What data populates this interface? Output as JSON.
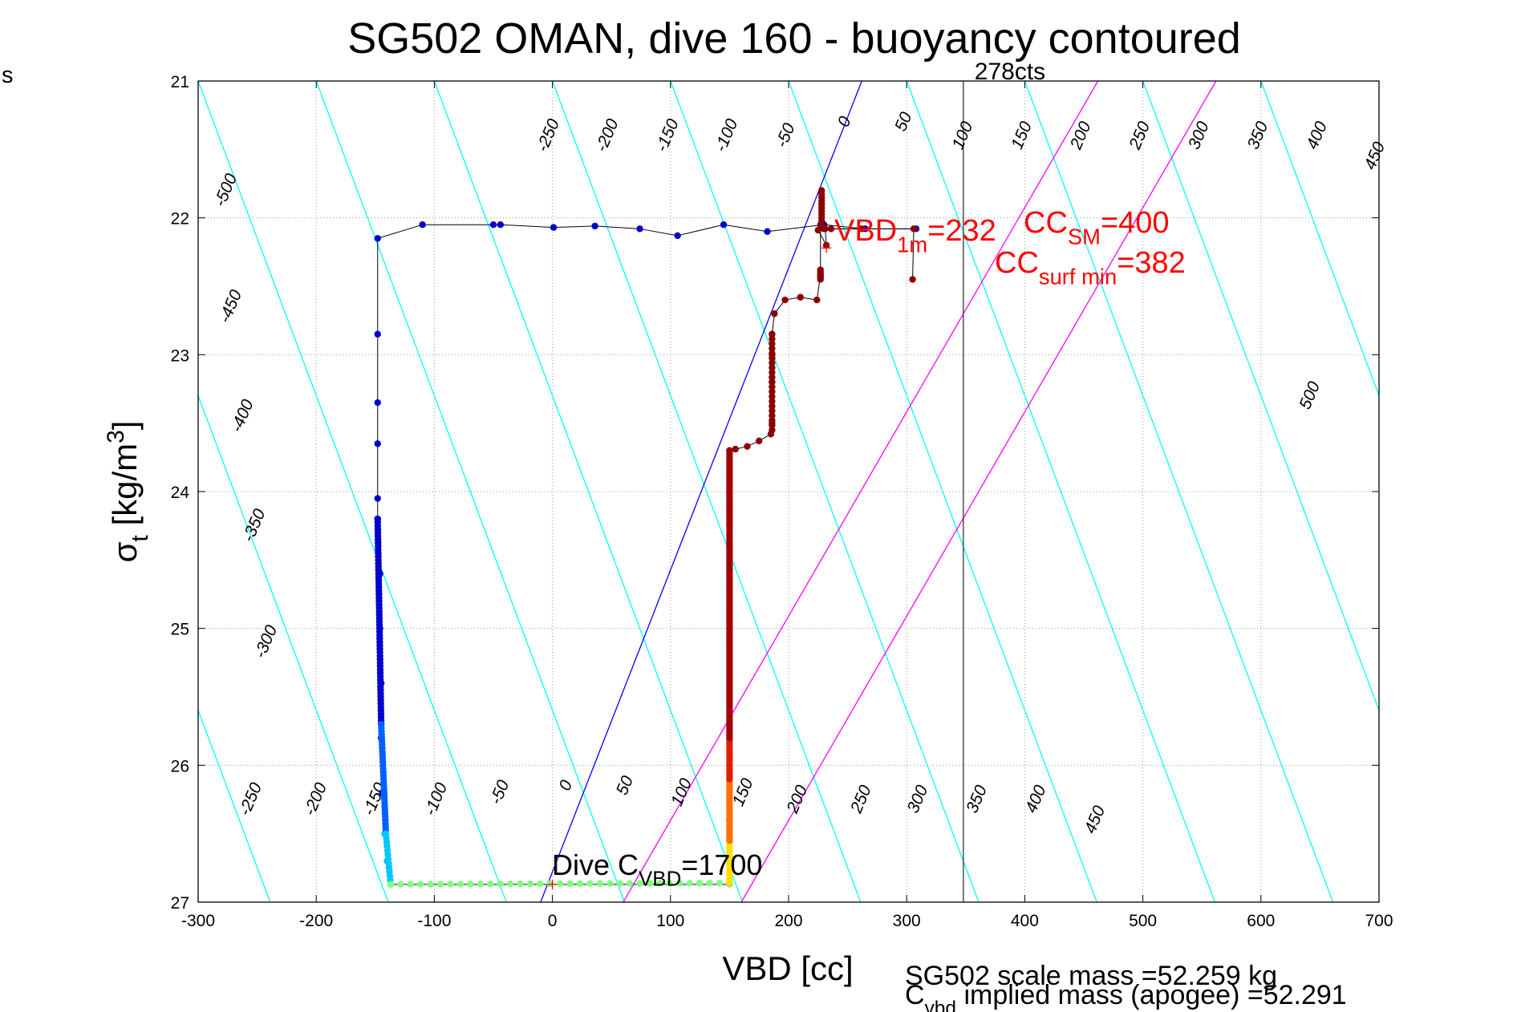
{
  "corner_text": "s",
  "chart_data": {
    "type": "scatter",
    "title": "SG502 OMAN, dive 160 - buoyancy contoured",
    "xlabel": "VBD [cc]",
    "ylabel": {
      "main": "σ",
      "sub": "t",
      "units": " [kg/m",
      "sup": "3",
      "close": "]"
    },
    "xlim": [
      -300,
      700
    ],
    "ylim": [
      21,
      27
    ],
    "y_reversed": true,
    "grid": true,
    "xticks": [
      -300,
      -200,
      -100,
      0,
      100,
      200,
      300,
      400,
      500,
      600,
      700
    ],
    "yticks": [
      21,
      22,
      23,
      24,
      25,
      26,
      27
    ],
    "xtick_labels": [
      "-300",
      "-200",
      "-100",
      "0",
      "100",
      "200",
      "300",
      "400",
      "500",
      "600",
      "700"
    ],
    "ytick_labels": [
      "21",
      "22",
      "23",
      "24",
      "25",
      "26",
      "27"
    ],
    "contour_slope_cc_per_sigma": 43.5,
    "contour_line_color": "#00ffff",
    "contour_intercepts": [
      -900,
      -800,
      -700,
      -600,
      -500,
      -400,
      -300,
      -200,
      -100,
      0,
      100,
      200,
      300,
      400,
      500,
      600,
      700,
      800,
      900
    ],
    "contour_labels_top": [
      {
        "text": "-500",
        "x": -276,
        "y": 21.8
      },
      {
        "text": "-250",
        "x": -3,
        "y": 21.4
      },
      {
        "text": "-200",
        "x": 47,
        "y": 21.4
      },
      {
        "text": "-150",
        "x": 98,
        "y": 21.4
      },
      {
        "text": "-100",
        "x": 148,
        "y": 21.4
      },
      {
        "text": "-50",
        "x": 198,
        "y": 21.4
      },
      {
        "text": "0",
        "x": 248,
        "y": 21.3
      },
      {
        "text": "50",
        "x": 298,
        "y": 21.3
      },
      {
        "text": "100",
        "x": 348,
        "y": 21.4
      },
      {
        "text": "150",
        "x": 398,
        "y": 21.4
      },
      {
        "text": "200",
        "x": 448,
        "y": 21.4
      },
      {
        "text": "250",
        "x": 498,
        "y": 21.4
      },
      {
        "text": "300",
        "x": 548,
        "y": 21.4
      },
      {
        "text": "350",
        "x": 598,
        "y": 21.4
      },
      {
        "text": "400",
        "x": 648,
        "y": 21.4
      },
      {
        "text": "450",
        "x": 697,
        "y": 21.55
      }
    ],
    "contour_labels_left": [
      {
        "text": "-450",
        "x": -272,
        "y": 22.65
      },
      {
        "text": "-400",
        "x": -262,
        "y": 23.45
      },
      {
        "text": "-350",
        "x": -252,
        "y": 24.25
      },
      {
        "text": "-300",
        "x": -242,
        "y": 25.1
      },
      {
        "text": "500",
        "x": 642,
        "y": 23.3
      }
    ],
    "contour_labels_bottom": [
      {
        "text": "-250",
        "x": -255,
        "y": 26.25
      },
      {
        "text": "-200",
        "x": -200,
        "y": 26.25
      },
      {
        "text": "-150",
        "x": -150,
        "y": 26.25
      },
      {
        "text": "-100",
        "x": -98,
        "y": 26.25
      },
      {
        "text": "-50",
        "x": -44,
        "y": 26.2
      },
      {
        "text": "0",
        "x": 12,
        "y": 26.15
      },
      {
        "text": "50",
        "x": 62,
        "y": 26.15
      },
      {
        "text": "100",
        "x": 110,
        "y": 26.2
      },
      {
        "text": "150",
        "x": 162,
        "y": 26.2
      },
      {
        "text": "200",
        "x": 208,
        "y": 26.25
      },
      {
        "text": "250",
        "x": 262,
        "y": 26.25
      },
      {
        "text": "300",
        "x": 310,
        "y": 26.25
      },
      {
        "text": "350",
        "x": 360,
        "y": 26.25
      },
      {
        "text": "400",
        "x": 410,
        "y": 26.25
      },
      {
        "text": "450",
        "x": 460,
        "y": 26.4
      }
    ],
    "reference_lines": [
      {
        "name": "zero buoyancy",
        "color": "#0000ff",
        "points": [
          [
            -10,
            27
          ],
          [
            262,
            21
          ]
        ]
      },
      {
        "name": "CC SM",
        "color": "#ff00ff",
        "points": [
          [
            60,
            27
          ],
          [
            462,
            21
          ]
        ]
      },
      {
        "name": "CC surf min",
        "color": "#ff00ff",
        "points": [
          [
            160,
            27
          ],
          [
            562,
            21
          ]
        ]
      },
      {
        "name": "pump counts",
        "color": "#333333",
        "points": [
          [
            348,
            21
          ],
          [
            348,
            27
          ]
        ]
      }
    ],
    "pump_label": "278cts",
    "annotations": {
      "vbd1m": {
        "base": "VBD",
        "sub": "1m",
        "rest": "=232"
      },
      "cc_sm": {
        "base": "CC",
        "sub": "SM",
        "rest": "=400"
      },
      "cc_surf_min": {
        "base": "CC",
        "sub": "surf min",
        "rest": "=382"
      },
      "dive_cvbd": {
        "base": "Dive C",
        "sub": "VBD",
        "rest": "=1700"
      },
      "scale_mass": "SG502 scale mass =52.259 kg",
      "implied_mass": {
        "base": "C",
        "sub": "vbd",
        "rest": " implied mass (apogee) =52.291"
      }
    },
    "marker_colors": {
      "dive_top": "#0000c8",
      "dive_mid": "#0050ff",
      "dive_lower": "#00b4ff",
      "bottom": "#7fff7f",
      "climb_low": "#ffff00",
      "climb_mid": "#ff8000",
      "climb": "#8b0000"
    },
    "series": [
      {
        "points": [
          [
            230,
            22.08
          ],
          [
            308,
            22.08
          ],
          [
            265,
            22.08
          ],
          [
            230,
            22.05
          ],
          [
            182,
            22.1
          ],
          [
            145,
            22.05
          ],
          [
            106,
            22.13
          ],
          [
            74,
            22.08
          ],
          [
            36,
            22.06
          ],
          [
            1,
            22.07
          ],
          [
            -44,
            22.05
          ],
          [
            -50,
            22.05
          ],
          [
            -110,
            22.05
          ],
          [
            -148,
            22.15
          ],
          [
            -148,
            22.85
          ],
          [
            -148,
            23.35
          ],
          [
            -148,
            23.65
          ],
          [
            -148,
            24.05
          ],
          [
            -148,
            24.2
          ],
          [
            -146,
            24.6
          ],
          [
            -146,
            25.0
          ],
          [
            -145,
            25.4
          ],
          [
            -145,
            25.8
          ],
          [
            -144,
            26.2
          ],
          [
            -142,
            26.5
          ],
          [
            -140,
            26.7
          ],
          [
            -137,
            26.87
          ]
        ],
        "dense_segments": [
          {
            "from": [
              -148,
              24.2
            ],
            "to": [
              -145,
              25.7
            ],
            "step": 0.025,
            "color": "#0000cd"
          },
          {
            "from": [
              -145,
              25.7
            ],
            "to": [
              -141,
              26.5
            ],
            "step": 0.025,
            "color": "#0060ff"
          },
          {
            "from": [
              -141,
              26.5
            ],
            "to": [
              -137,
              26.87
            ],
            "step": 0.03,
            "color": "#00c8ff"
          }
        ]
      },
      {
        "points": [
          [
            -137,
            26.87
          ],
          [
            150,
            26.87
          ]
        ],
        "dense_segments": [
          {
            "from": [
              -137,
              26.87
            ],
            "to": [
              150,
              26.86
            ],
            "step_x": 8.5,
            "color": "#80ff80"
          }
        ]
      },
      {
        "points": [
          [
            150,
            26.86
          ],
          [
            150,
            26.4
          ],
          [
            150,
            25.0
          ],
          [
            150,
            23.7
          ],
          [
            155,
            23.69
          ],
          [
            165,
            23.67
          ],
          [
            175,
            23.63
          ],
          [
            185,
            23.58
          ],
          [
            186,
            23.5
          ],
          [
            186,
            23.2
          ],
          [
            186,
            23.0
          ],
          [
            186,
            22.85
          ],
          [
            188,
            22.7
          ],
          [
            197,
            22.6
          ],
          [
            210,
            22.58
          ],
          [
            224,
            22.6
          ],
          [
            227,
            22.42
          ],
          [
            227,
            22.05
          ],
          [
            231,
            22.08
          ],
          [
            232,
            22.2
          ],
          [
            225,
            22.09
          ],
          [
            236,
            22.08
          ],
          [
            262,
            22.08
          ],
          [
            306,
            22.08
          ],
          [
            305,
            22.45
          ]
        ],
        "dense_segments": [
          {
            "from": [
              150,
              26.86
            ],
            "to": [
              150,
              26.55
            ],
            "step": 0.02,
            "color": "#ffe000"
          },
          {
            "from": [
              150,
              26.55
            ],
            "to": [
              150,
              26.1
            ],
            "step": 0.02,
            "color": "#ff7000"
          },
          {
            "from": [
              150,
              26.1
            ],
            "to": [
              150,
              25.8
            ],
            "step": 0.02,
            "color": "#e02000"
          },
          {
            "from": [
              150,
              25.8
            ],
            "to": [
              150,
              23.7
            ],
            "step": 0.02,
            "color": "#a00000"
          },
          {
            "from": [
              186,
              23.55
            ],
            "to": [
              186,
              22.85
            ],
            "step": 0.035,
            "color": "#8b0000"
          },
          {
            "from": [
              227,
              22.45
            ],
            "to": [
              227,
              22.38
            ],
            "step": 0.02,
            "color": "#8b0000"
          },
          {
            "from": [
              228,
              21.8
            ],
            "to": [
              228,
              22.05
            ],
            "step": 0.025,
            "color": "#8b0000"
          }
        ]
      }
    ],
    "markers": [
      {
        "name": "vbd-1m-marker",
        "x": 232,
        "y": 22.22,
        "color": "#ff0000"
      },
      {
        "name": "dive-cvbd-marker",
        "x": 0,
        "y": 26.87,
        "color": "#ff0000"
      }
    ]
  }
}
